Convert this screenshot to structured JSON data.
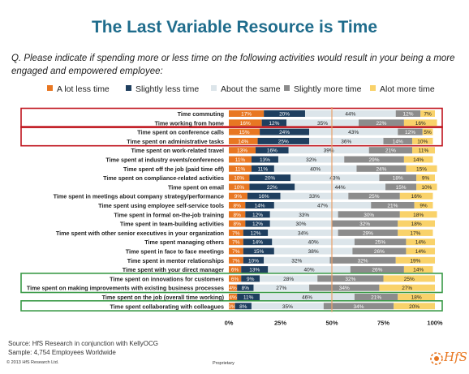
{
  "page": {
    "title": "The Last Variable Resource is Time",
    "question": "Q.  Please indicate if spending more or less time on the following activities would result in your being a more engaged and empowered employee:",
    "source_line1": "Source:  HfS Research in conjunction with KellyOCG",
    "source_line2": "Sample: 4,754 Employees Worldwide",
    "copyright": "© 2013 HfS Research Ltd.",
    "proprietary": "Proprietary",
    "logo_text": "HfS"
  },
  "colors": {
    "title": "#1f6c8c",
    "highlight_red": "#c0161f",
    "highlight_green": "#3a9a47",
    "midline": "#e8a06a"
  },
  "chart_data": {
    "type": "bar",
    "orientation": "horizontal",
    "stacked": true,
    "xlim": [
      0,
      100
    ],
    "x_ticks": [
      "0%",
      "25%",
      "50%",
      "75%",
      "100%"
    ],
    "grid": false,
    "legend_position": "top",
    "series": [
      {
        "name": "A lot less time",
        "color": "#e87722"
      },
      {
        "name": "Slightly less time",
        "color": "#1f3f5f"
      },
      {
        "name": "About the same",
        "color": "#dce5ea"
      },
      {
        "name": "Slightly more time",
        "color": "#8c8c8c"
      },
      {
        "name": "Alot more time",
        "color": "#f9d26a"
      }
    ],
    "categories": [
      "Time commuting",
      "Time working from home",
      "Time spent on conference calls",
      "Time spent on administrative tasks",
      "Time spent on work-related travel",
      "Time spent at industry events/conferences",
      "Time spent off the job (paid time off)",
      "Time spent on compliance-related activities",
      "Time spent on email",
      "Time spent in meetings about company strategy/performance",
      "Time spent using employee self-service tools",
      "Time spent in formal on-the-job training",
      "Time spent in team-building activities",
      "Time spent with other senior executives in your organization",
      "Time spent managing others",
      "Time spent in face to face meetings",
      "Time spent in mentor relationships",
      "Time spent with your direct manager",
      "Time spent on innovations for customers",
      "Time spent on making improvements with existing business processes",
      "Time spent on the job (overall time working)",
      "Time spent collaborating with colleagues"
    ],
    "values": [
      [
        17,
        20,
        44,
        12,
        7
      ],
      [
        16,
        12,
        35,
        22,
        16
      ],
      [
        15,
        24,
        43,
        12,
        5
      ],
      [
        14,
        25,
        36,
        14,
        10
      ],
      [
        13,
        16,
        39,
        21,
        11
      ],
      [
        11,
        13,
        32,
        29,
        14
      ],
      [
        11,
        11,
        40,
        24,
        15
      ],
      [
        10,
        20,
        43,
        18,
        9
      ],
      [
        10,
        22,
        44,
        15,
        10
      ],
      [
        9,
        16,
        33,
        25,
        16
      ],
      [
        8,
        14,
        47,
        21,
        9
      ],
      [
        8,
        12,
        33,
        30,
        18
      ],
      [
        8,
        12,
        30,
        32,
        18
      ],
      [
        7,
        12,
        34,
        29,
        17
      ],
      [
        7,
        14,
        40,
        25,
        14
      ],
      [
        7,
        15,
        38,
        26,
        14
      ],
      [
        7,
        10,
        32,
        32,
        19
      ],
      [
        6,
        13,
        40,
        26,
        14
      ],
      [
        6,
        9,
        28,
        32,
        25
      ],
      [
        4,
        8,
        27,
        34,
        27
      ],
      [
        4,
        11,
        46,
        21,
        18
      ],
      [
        3,
        8,
        35,
        34,
        20
      ]
    ],
    "highlight_groups": [
      {
        "rows": [
          0,
          1
        ],
        "color": "red"
      },
      {
        "rows": [
          2,
          3
        ],
        "color": "red"
      },
      {
        "rows": [
          18,
          19
        ],
        "color": "green"
      },
      {
        "rows": [
          21,
          21
        ],
        "color": "green"
      }
    ]
  }
}
